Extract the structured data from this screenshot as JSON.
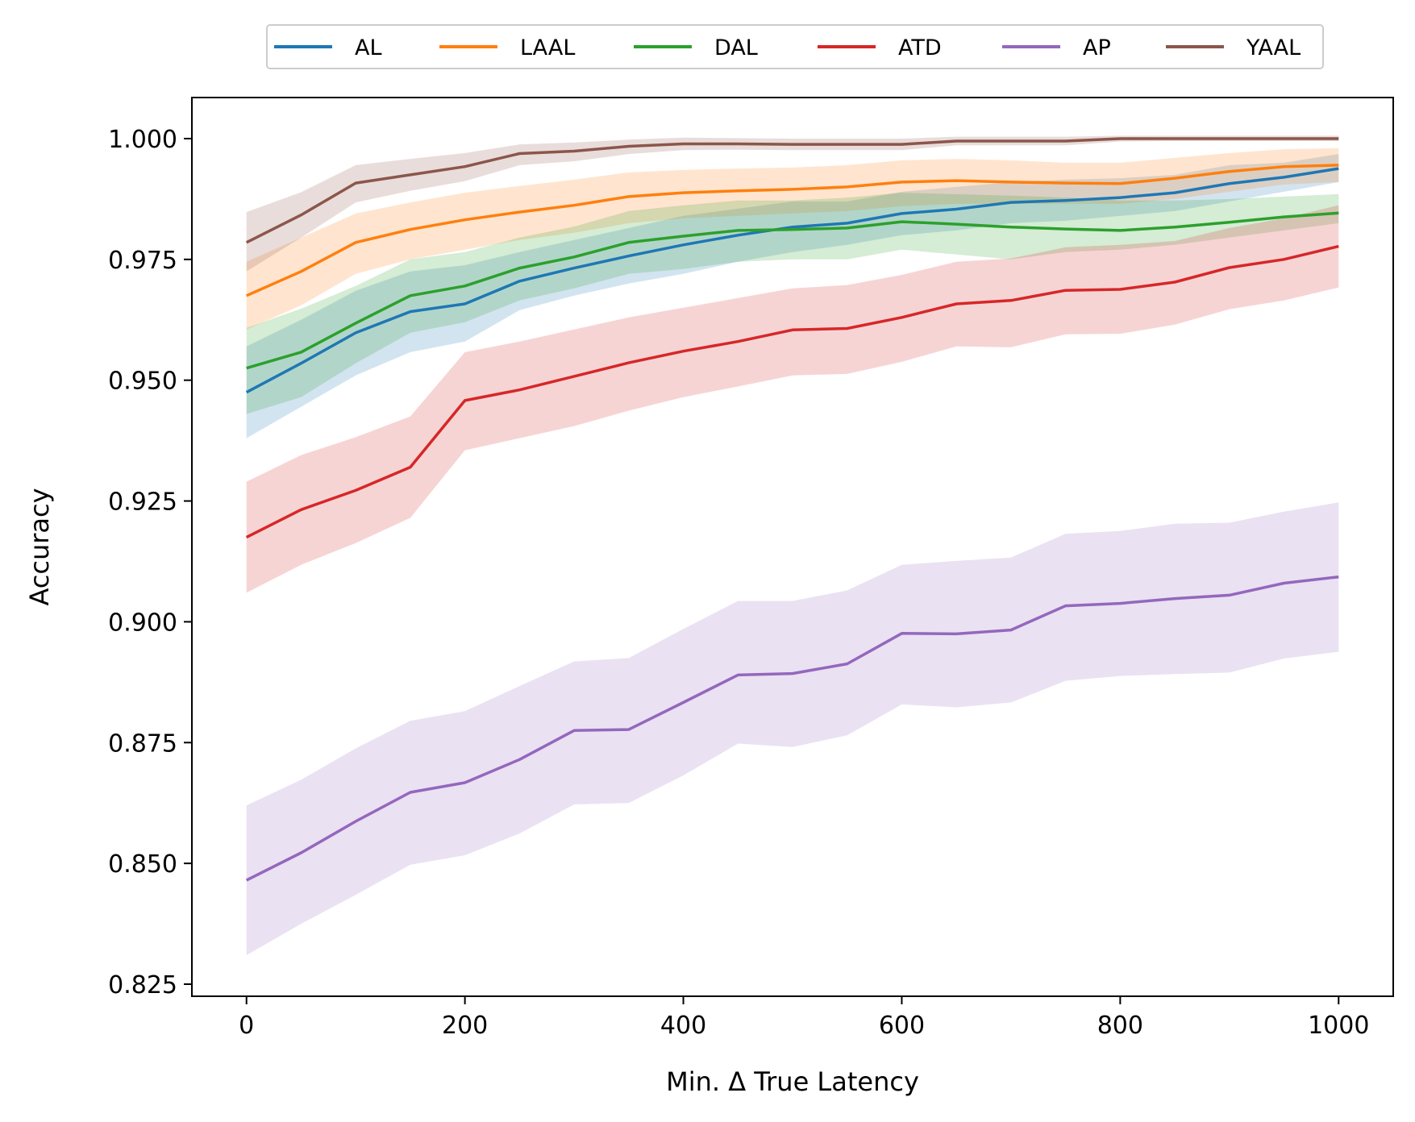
{
  "chart_data": {
    "type": "line",
    "title": "",
    "xlabel": "Min. Δ True Latency",
    "ylabel": "Accuracy",
    "xlim": [
      -50,
      1050
    ],
    "ylim": [
      0.8225,
      1.0085
    ],
    "xticks": [
      0,
      200,
      400,
      600,
      800,
      1000
    ],
    "yticks": [
      0.825,
      0.85,
      0.875,
      0.9,
      0.925,
      0.95,
      0.975,
      1.0
    ],
    "xtick_labels": [
      "0",
      "200",
      "400",
      "600",
      "800",
      "1000"
    ],
    "ytick_labels": [
      "0.825",
      "0.850",
      "0.875",
      "0.900",
      "0.925",
      "0.950",
      "0.975",
      "1.000"
    ],
    "grid": false,
    "legend_position": "top-center-outside",
    "x": [
      0,
      50,
      100,
      150,
      200,
      250,
      300,
      350,
      400,
      450,
      500,
      550,
      600,
      650,
      700,
      750,
      800,
      850,
      900,
      950,
      1000
    ],
    "series": [
      {
        "name": "AL",
        "color": "#1f77b4",
        "values": [
          0.9475,
          0.9535,
          0.9598,
          0.9642,
          0.9658,
          0.9705,
          0.9732,
          0.9757,
          0.978,
          0.98,
          0.9817,
          0.9825,
          0.9845,
          0.9854,
          0.9868,
          0.9872,
          0.9878,
          0.9888,
          0.9907,
          0.992,
          0.9938
        ],
        "lower": [
          0.938,
          0.9445,
          0.951,
          0.9558,
          0.958,
          0.9645,
          0.9675,
          0.97,
          0.972,
          0.9745,
          0.9765,
          0.978,
          0.98,
          0.981,
          0.9825,
          0.983,
          0.984,
          0.985,
          0.987,
          0.989,
          0.991
        ],
        "upper": [
          0.957,
          0.9625,
          0.9685,
          0.9725,
          0.9738,
          0.9765,
          0.979,
          0.9815,
          0.984,
          0.9855,
          0.987,
          0.987,
          0.989,
          0.99,
          0.991,
          0.9915,
          0.9918,
          0.9925,
          0.9945,
          0.995,
          0.9968
        ]
      },
      {
        "name": "LAAL",
        "color": "#ff7f0e",
        "values": [
          0.9675,
          0.9725,
          0.9785,
          0.9812,
          0.9832,
          0.9848,
          0.9862,
          0.988,
          0.9888,
          0.9892,
          0.9895,
          0.99,
          0.991,
          0.9913,
          0.991,
          0.9908,
          0.9907,
          0.9918,
          0.9932,
          0.9942,
          0.9945
        ],
        "lower": [
          0.9605,
          0.9655,
          0.972,
          0.975,
          0.977,
          0.979,
          0.9805,
          0.9825,
          0.9835,
          0.984,
          0.9845,
          0.985,
          0.986,
          0.9865,
          0.9865,
          0.9865,
          0.9865,
          0.9875,
          0.989,
          0.9905,
          0.991
        ],
        "upper": [
          0.9745,
          0.9795,
          0.9845,
          0.9868,
          0.9888,
          0.9902,
          0.9915,
          0.993,
          0.9935,
          0.9938,
          0.994,
          0.9945,
          0.9955,
          0.9958,
          0.9955,
          0.995,
          0.995,
          0.996,
          0.997,
          0.9978,
          0.998
        ]
      },
      {
        "name": "DAL",
        "color": "#2ca02c",
        "values": [
          0.9525,
          0.9558,
          0.9618,
          0.9675,
          0.9695,
          0.9732,
          0.9755,
          0.9785,
          0.9798,
          0.981,
          0.9812,
          0.9815,
          0.9828,
          0.9823,
          0.9817,
          0.9813,
          0.981,
          0.9817,
          0.9827,
          0.9838,
          0.9846
        ],
        "lower": [
          0.943,
          0.9465,
          0.9535,
          0.9598,
          0.962,
          0.9665,
          0.969,
          0.972,
          0.973,
          0.9745,
          0.975,
          0.975,
          0.977,
          0.976,
          0.975,
          0.9765,
          0.977,
          0.978,
          0.9795,
          0.981,
          0.9825
        ],
        "upper": [
          0.9608,
          0.9648,
          0.9695,
          0.975,
          0.9765,
          0.9795,
          0.9818,
          0.985,
          0.9862,
          0.9872,
          0.9872,
          0.9878,
          0.9888,
          0.9885,
          0.9882,
          0.9878,
          0.9872,
          0.9872,
          0.9875,
          0.988,
          0.9885
        ]
      },
      {
        "name": "ATD",
        "color": "#d62728",
        "values": [
          0.9175,
          0.9232,
          0.9272,
          0.932,
          0.9458,
          0.948,
          0.9508,
          0.9536,
          0.956,
          0.958,
          0.9604,
          0.9607,
          0.963,
          0.9658,
          0.9665,
          0.9686,
          0.9688,
          0.9703,
          0.9733,
          0.975,
          0.9777
        ],
        "lower": [
          0.906,
          0.9118,
          0.9163,
          0.9215,
          0.9355,
          0.938,
          0.9405,
          0.9437,
          0.9465,
          0.9487,
          0.951,
          0.9513,
          0.9538,
          0.957,
          0.9568,
          0.9595,
          0.9596,
          0.9615,
          0.9647,
          0.9665,
          0.9692
        ],
        "upper": [
          0.929,
          0.9345,
          0.9382,
          0.9425,
          0.9558,
          0.958,
          0.9605,
          0.963,
          0.965,
          0.967,
          0.969,
          0.9697,
          0.9718,
          0.9745,
          0.9752,
          0.9775,
          0.978,
          0.9788,
          0.9815,
          0.9835,
          0.9862
        ]
      },
      {
        "name": "AP",
        "color": "#9467bd",
        "values": [
          0.8465,
          0.8522,
          0.8587,
          0.8647,
          0.8667,
          0.8715,
          0.8775,
          0.8777,
          0.8833,
          0.889,
          0.8893,
          0.8913,
          0.8976,
          0.8975,
          0.8983,
          0.9033,
          0.9038,
          0.9048,
          0.9055,
          0.908,
          0.9093
        ],
        "lower": [
          0.831,
          0.8375,
          0.8435,
          0.8497,
          0.8517,
          0.8562,
          0.8622,
          0.8625,
          0.8682,
          0.8748,
          0.8741,
          0.8765,
          0.8829,
          0.8823,
          0.8833,
          0.8878,
          0.8888,
          0.8892,
          0.8895,
          0.8924,
          0.8938
        ],
        "upper": [
          0.862,
          0.8673,
          0.8738,
          0.8795,
          0.8815,
          0.8867,
          0.8918,
          0.8925,
          0.8985,
          0.9043,
          0.9043,
          0.9065,
          0.9118,
          0.9126,
          0.9133,
          0.9182,
          0.9188,
          0.9203,
          0.9205,
          0.9228,
          0.9247
        ]
      },
      {
        "name": "YAAL",
        "color": "#8c564b",
        "values": [
          0.9785,
          0.9842,
          0.9908,
          0.9925,
          0.9942,
          0.9969,
          0.9974,
          0.9984,
          0.9989,
          0.9989,
          0.9988,
          0.9988,
          0.9988,
          0.9995,
          0.9995,
          0.9995,
          1.0,
          1.0,
          1.0,
          1.0,
          1.0
        ],
        "lower": [
          0.9725,
          0.9795,
          0.9868,
          0.9892,
          0.9912,
          0.9945,
          0.9953,
          0.9968,
          0.9976,
          0.9977,
          0.9976,
          0.9976,
          0.9976,
          0.9986,
          0.9986,
          0.9986,
          0.9994,
          0.9995,
          0.9995,
          0.9995,
          0.9995
        ],
        "upper": [
          0.9848,
          0.9889,
          0.9945,
          0.9958,
          0.997,
          0.9988,
          0.9992,
          0.9998,
          1.0002,
          1.0001,
          1.0,
          1.0,
          1.0,
          1.0004,
          1.0004,
          1.0004,
          1.0006,
          1.0006,
          1.0006,
          1.0006,
          1.0006
        ]
      }
    ]
  }
}
